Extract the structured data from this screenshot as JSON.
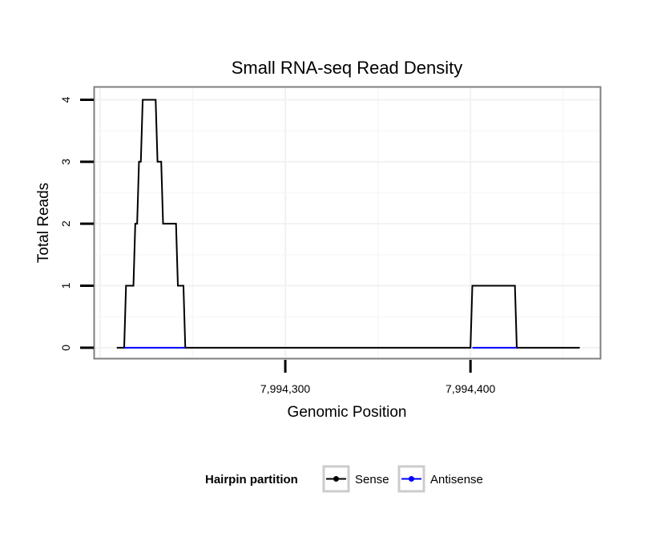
{
  "chart_data": {
    "type": "line",
    "title": "Small RNA-seq Read Density",
    "xlabel": "Genomic Position",
    "ylabel": "Total Reads",
    "xlim": [
      7994197,
      7994470
    ],
    "ylim": [
      -0.17,
      4.2
    ],
    "x_ticks": [
      7994300,
      7994400
    ],
    "x_tick_labels": [
      "7,994,300",
      "7,994,400"
    ],
    "y_ticks": [
      0,
      1,
      2,
      3,
      4
    ],
    "y_tick_labels": [
      "0",
      "1",
      "2",
      "3",
      "4"
    ],
    "grid": true,
    "series": [
      {
        "name": "Sense",
        "color": "#000000",
        "x": [
          7994209,
          7994213,
          7994214,
          7994218,
          7994219,
          7994220,
          7994221,
          7994222,
          7994223,
          7994230,
          7994231,
          7994233,
          7994234,
          7994241,
          7994242,
          7994245,
          7994246,
          7994400,
          7994401,
          7994424,
          7994425,
          7994459
        ],
        "y": [
          0,
          0,
          1,
          1,
          2,
          2,
          3,
          3,
          4,
          4,
          3,
          3,
          2,
          2,
          1,
          1,
          0,
          0,
          1,
          1,
          0,
          0
        ]
      },
      {
        "name": "Antisense",
        "color": "#0000ff",
        "x": [
          7994213,
          7994246,
          7994246,
          7994401,
          7994401,
          7994425
        ],
        "y": [
          0,
          0,
          null,
          null,
          0,
          0
        ]
      }
    ],
    "legend": {
      "title": "Hairpin partition",
      "position": "bottom",
      "entries": [
        "Sense",
        "Antisense"
      ]
    }
  }
}
